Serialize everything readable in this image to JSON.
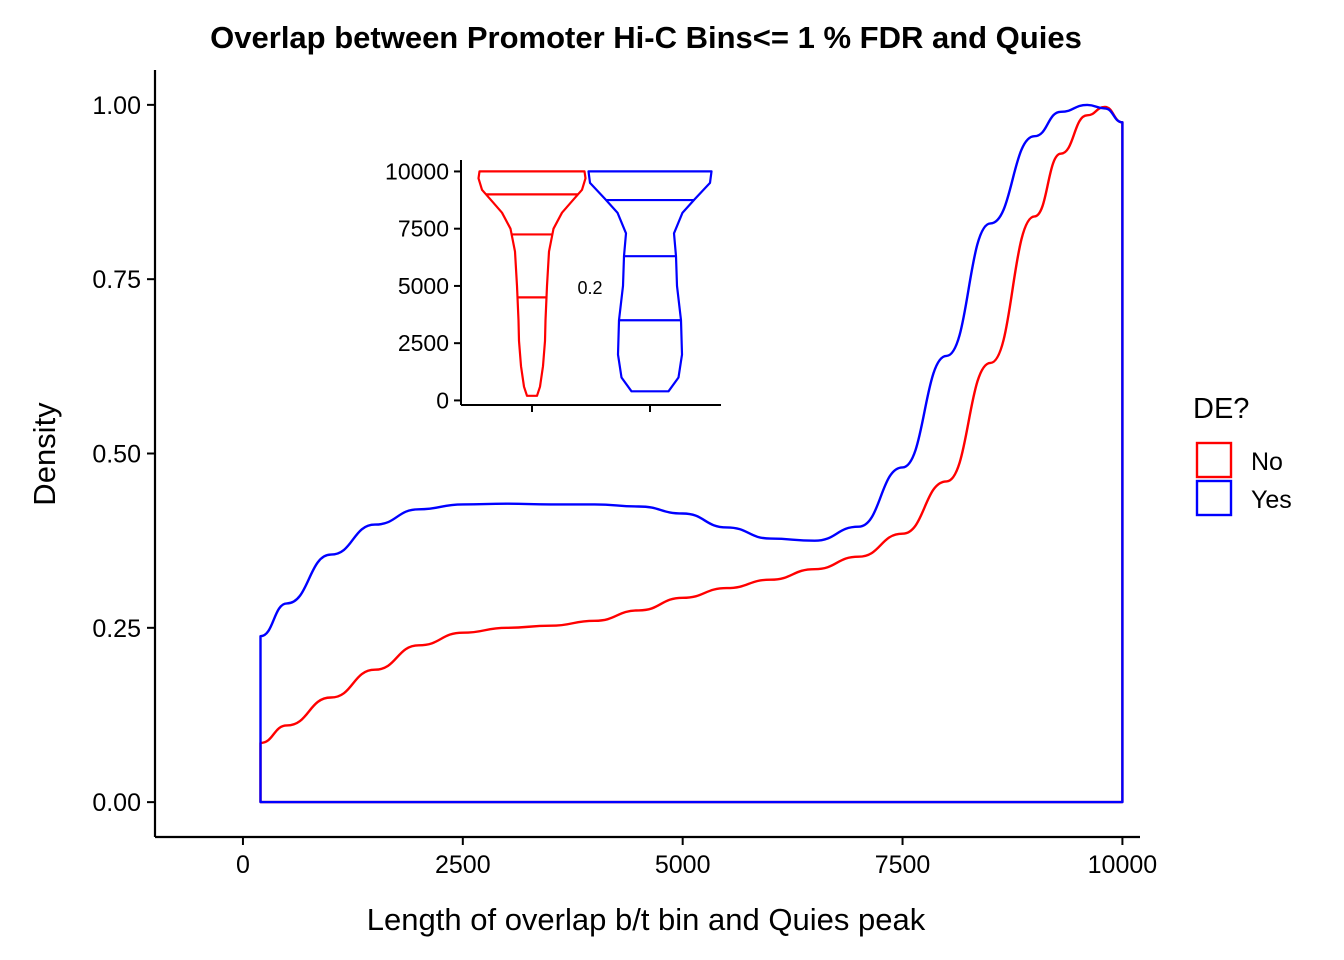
{
  "chart_data": [
    {
      "type": "area",
      "title": "Overlap between Promoter Hi-C Bins<= 1 % FDR and Quies",
      "xlabel": "Length of overlap b/t bin and Quies peak",
      "ylabel": "Density",
      "xlim": [
        -1000,
        10200
      ],
      "ylim": [
        -0.05,
        1.05
      ],
      "x_ticks": [
        0,
        2500,
        5000,
        7500,
        10000
      ],
      "x_tick_labels": [
        "0",
        "2500",
        "5000",
        "7500",
        "10000"
      ],
      "y_ticks": [
        0,
        0.25,
        0.5,
        0.75,
        1.0
      ],
      "y_tick_labels": [
        "0.00",
        "0.25",
        "0.50",
        "0.75",
        "1.00"
      ],
      "grid": false,
      "legend": {
        "title": "DE?",
        "position": "right",
        "items": [
          {
            "label": "No",
            "color": "#ff0000"
          },
          {
            "label": "Yes",
            "color": "#0000ff"
          }
        ]
      },
      "series": [
        {
          "name": "No",
          "color": "#ff0000",
          "x": [
            200,
            500,
            1000,
            1500,
            2000,
            2500,
            3000,
            3500,
            4000,
            4500,
            5000,
            5500,
            6000,
            6500,
            7000,
            7500,
            8000,
            8500,
            9000,
            9300,
            9600,
            9800,
            10000
          ],
          "y": [
            0.085,
            0.11,
            0.15,
            0.19,
            0.225,
            0.243,
            0.25,
            0.253,
            0.26,
            0.275,
            0.293,
            0.307,
            0.319,
            0.334,
            0.352,
            0.385,
            0.46,
            0.63,
            0.84,
            0.93,
            0.985,
            0.997,
            0.975
          ]
        },
        {
          "name": "Yes",
          "color": "#0000ff",
          "x": [
            200,
            500,
            1000,
            1500,
            2000,
            2500,
            3000,
            3500,
            4000,
            4500,
            5000,
            5500,
            6000,
            6500,
            7000,
            7500,
            8000,
            8500,
            9000,
            9300,
            9600,
            9800,
            10000
          ],
          "y": [
            0.238,
            0.285,
            0.355,
            0.398,
            0.42,
            0.427,
            0.428,
            0.427,
            0.427,
            0.424,
            0.414,
            0.394,
            0.378,
            0.375,
            0.395,
            0.48,
            0.64,
            0.83,
            0.955,
            0.99,
            1.0,
            0.995,
            0.975
          ]
        }
      ]
    },
    {
      "type": "violin",
      "ylim": [
        -200,
        10500
      ],
      "y_ticks": [
        0,
        2500,
        5000,
        7500,
        10000
      ],
      "y_tick_labels": [
        "0",
        "2500",
        "5000",
        "7500",
        "10000"
      ],
      "annotation": "0.2",
      "series": [
        {
          "name": "No",
          "color": "#ff0000",
          "quantiles": [
            4500,
            7250,
            9000
          ],
          "shape": [
            {
              "y": 200,
              "w": 0.1
            },
            {
              "y": 600,
              "w": 0.16
            },
            {
              "y": 1500,
              "w": 0.22
            },
            {
              "y": 2600,
              "w": 0.26
            },
            {
              "y": 3500,
              "w": 0.27
            },
            {
              "y": 5000,
              "w": 0.3
            },
            {
              "y": 6500,
              "w": 0.34
            },
            {
              "y": 7500,
              "w": 0.43
            },
            {
              "y": 8200,
              "w": 0.6
            },
            {
              "y": 8700,
              "w": 0.8
            },
            {
              "y": 9200,
              "w": 1.0
            },
            {
              "y": 9700,
              "w": 1.07
            },
            {
              "y": 10000,
              "w": 1.05
            }
          ]
        },
        {
          "name": "Yes",
          "color": "#0000ff",
          "quantiles": [
            3500,
            6300,
            8750
          ],
          "shape": [
            {
              "y": 400,
              "w": 0.37
            },
            {
              "y": 1000,
              "w": 0.57
            },
            {
              "y": 2000,
              "w": 0.64
            },
            {
              "y": 3500,
              "w": 0.62
            },
            {
              "y": 5000,
              "w": 0.54
            },
            {
              "y": 6300,
              "w": 0.52
            },
            {
              "y": 7300,
              "w": 0.48
            },
            {
              "y": 8200,
              "w": 0.65
            },
            {
              "y": 8800,
              "w": 0.9
            },
            {
              "y": 9500,
              "w": 1.2
            },
            {
              "y": 10000,
              "w": 1.23
            }
          ]
        }
      ]
    }
  ]
}
